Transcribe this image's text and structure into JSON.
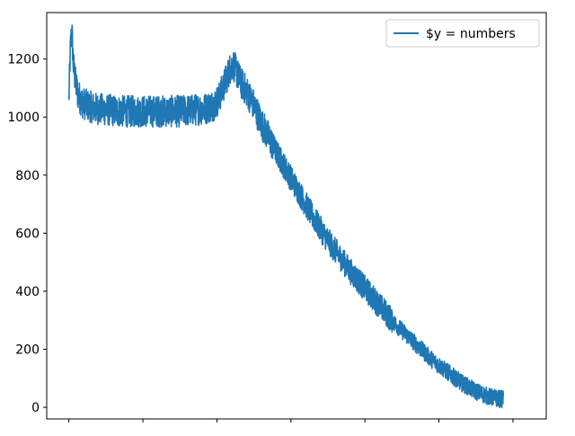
{
  "chart_data": {
    "type": "line",
    "xlabel": "",
    "ylabel": "",
    "xlim": [
      -0.3,
      6.45
    ],
    "ylim": [
      -40,
      1360
    ],
    "yticks": [
      0,
      200,
      400,
      600,
      800,
      1000,
      1200
    ],
    "xticks": [
      0,
      1,
      2,
      3,
      4,
      5,
      6
    ],
    "xtick_labels_visible": false,
    "grid": false,
    "legend": {
      "placement": "top-right",
      "entries": [
        "$y = numbers"
      ]
    },
    "series": [
      {
        "name": "$y = numbers",
        "color": "#1f77b4",
        "points": [
          [
            0.0,
            1060
          ],
          [
            0.02,
            1240
          ],
          [
            0.04,
            1300
          ],
          [
            0.06,
            1180
          ],
          [
            0.09,
            1120
          ],
          [
            0.12,
            1080
          ],
          [
            0.18,
            1050
          ],
          [
            0.25,
            1040
          ],
          [
            0.35,
            1030
          ],
          [
            0.5,
            1025
          ],
          [
            0.7,
            1020
          ],
          [
            0.9,
            1020
          ],
          [
            1.1,
            1020
          ],
          [
            1.3,
            1020
          ],
          [
            1.5,
            1020
          ],
          [
            1.7,
            1025
          ],
          [
            1.85,
            1030
          ],
          [
            1.95,
            1040
          ],
          [
            2.02,
            1060
          ],
          [
            2.08,
            1100
          ],
          [
            2.14,
            1140
          ],
          [
            2.18,
            1170
          ],
          [
            2.22,
            1180
          ],
          [
            2.26,
            1160
          ],
          [
            2.32,
            1120
          ],
          [
            2.4,
            1090
          ],
          [
            2.5,
            1040
          ],
          [
            2.6,
            980
          ],
          [
            2.7,
            930
          ],
          [
            2.8,
            880
          ],
          [
            2.9,
            835
          ],
          [
            3.0,
            790
          ],
          [
            3.1,
            745
          ],
          [
            3.2,
            700
          ],
          [
            3.3,
            655
          ],
          [
            3.4,
            615
          ],
          [
            3.5,
            575
          ],
          [
            3.6,
            540
          ],
          [
            3.7,
            505
          ],
          [
            3.8,
            470
          ],
          [
            3.9,
            440
          ],
          [
            4.0,
            410
          ],
          [
            4.1,
            380
          ],
          [
            4.2,
            350
          ],
          [
            4.3,
            320
          ],
          [
            4.4,
            290
          ],
          [
            4.5,
            265
          ],
          [
            4.6,
            240
          ],
          [
            4.7,
            215
          ],
          [
            4.8,
            190
          ],
          [
            4.9,
            165
          ],
          [
            5.0,
            145
          ],
          [
            5.1,
            125
          ],
          [
            5.2,
            105
          ],
          [
            5.3,
            85
          ],
          [
            5.4,
            70
          ],
          [
            5.5,
            55
          ],
          [
            5.6,
            45
          ],
          [
            5.7,
            35
          ],
          [
            5.8,
            30
          ],
          [
            5.87,
            28
          ]
        ]
      }
    ]
  }
}
